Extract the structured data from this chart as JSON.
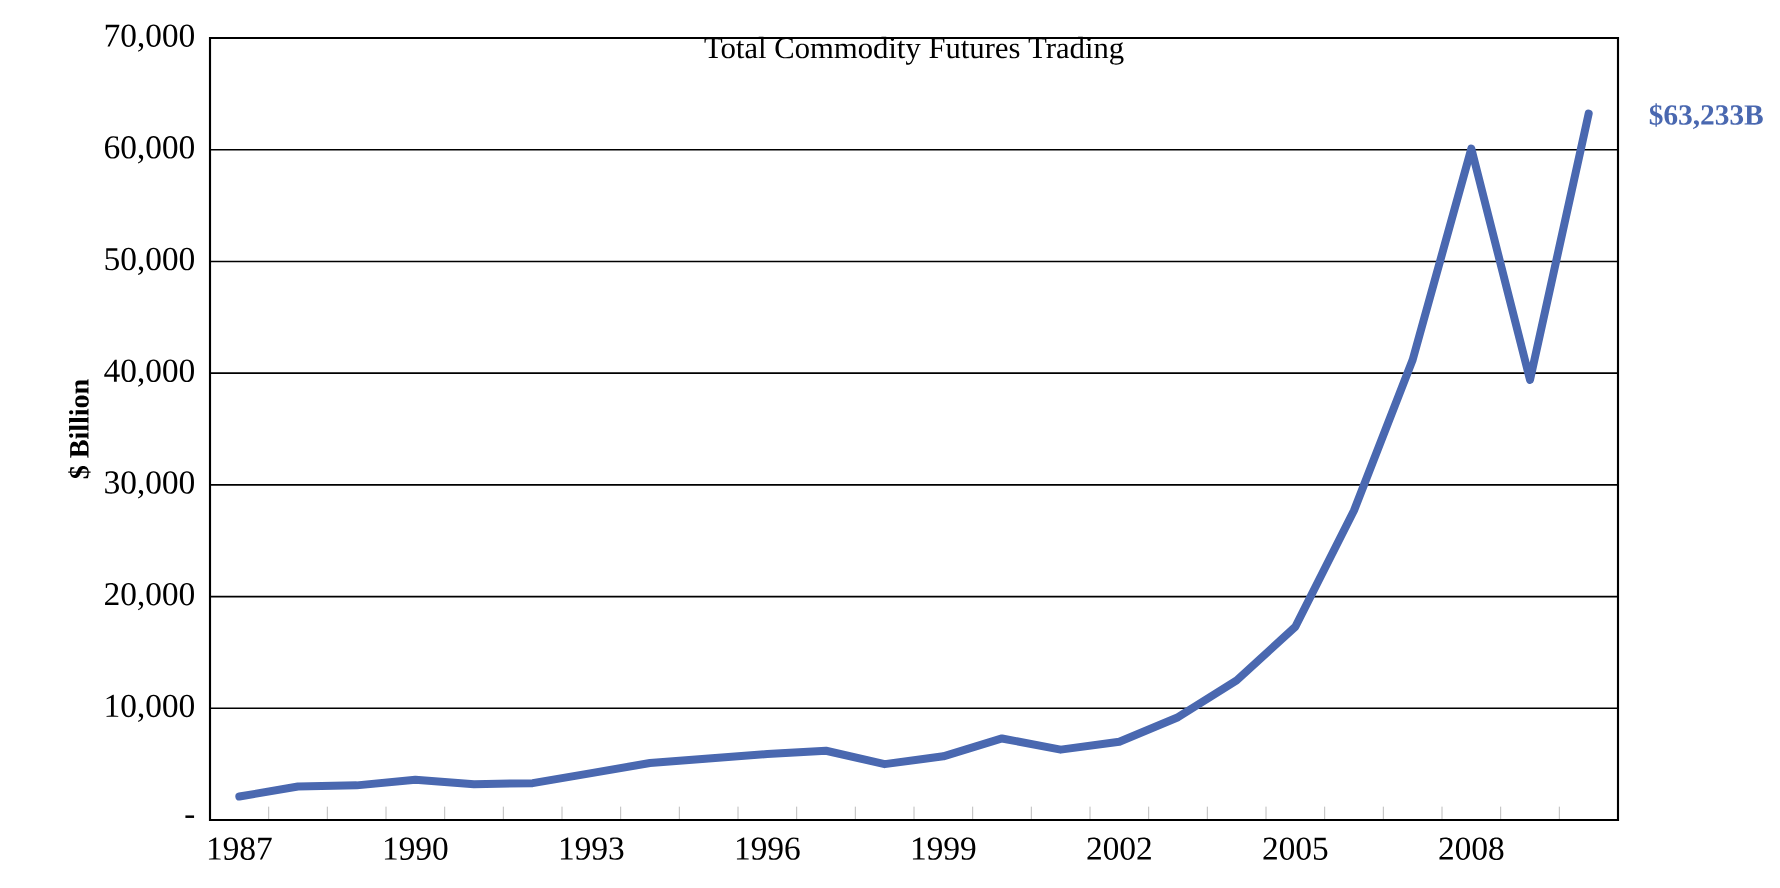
{
  "chart_data": {
    "type": "line",
    "title": "Total Commodity Futures Trading",
    "ylabel": "$ Billion",
    "categories": [
      "1987",
      null,
      null,
      "1990",
      null,
      null,
      "1993",
      null,
      null,
      "1996",
      null,
      null,
      "1999",
      null,
      null,
      "2002",
      null,
      null,
      "2005",
      null,
      null,
      "2008",
      null,
      null
    ],
    "values": [
      2100,
      3000,
      3100,
      3600,
      3200,
      3300,
      4200,
      5100,
      5500,
      5900,
      6200,
      5000,
      5700,
      7300,
      6300,
      7000,
      9200,
      12500,
      17300,
      27700,
      41200,
      60100,
      39400,
      63233
    ],
    "color": "#4a68b0",
    "line_style": "solid",
    "ylim": [
      0,
      70000
    ],
    "yticks": [
      {
        "value": 0,
        "label": "-"
      },
      {
        "value": 10000,
        "label": "10,000"
      },
      {
        "value": 20000,
        "label": "20,000"
      },
      {
        "value": 30000,
        "label": "30,000"
      },
      {
        "value": 40000,
        "label": "40,000"
      },
      {
        "value": 50000,
        "label": "50,000"
      },
      {
        "value": 60000,
        "label": "60,000"
      },
      {
        "value": 70000,
        "label": "70,000"
      }
    ],
    "grid": "y",
    "annotations": [
      "$63,233B"
    ]
  }
}
